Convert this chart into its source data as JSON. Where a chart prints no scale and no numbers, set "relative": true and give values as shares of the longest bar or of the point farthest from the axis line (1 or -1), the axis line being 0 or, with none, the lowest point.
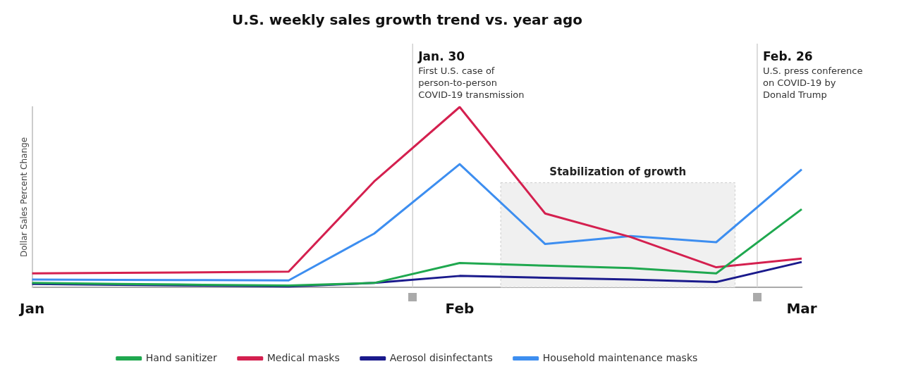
{
  "chart_data": {
    "type": "line",
    "title": "U.S. weekly sales growth trend vs. year ago",
    "ylabel": "Dollar Sales Percent Change",
    "relative": true,
    "categories": [
      "Jan",
      null,
      null,
      null,
      null,
      "Feb",
      null,
      null,
      null,
      "Mar"
    ],
    "series": [
      {
        "name": "Hand sanitizer",
        "color": "#1fa84f",
        "values": [
          0.024,
          0.019,
          0.014,
          0.01,
          0.024,
          0.135,
          0.12,
          0.106,
          0.077,
          0.433
        ]
      },
      {
        "name": "Medical masks",
        "color": "#d4204f",
        "values": [
          0.077,
          0.08,
          0.083,
          0.087,
          0.587,
          1,
          0.409,
          0.279,
          0.111,
          0.159
        ]
      },
      {
        "name": "Aerosol disinfectants",
        "color": "#1a1a8c",
        "values": [
          0.019,
          0.014,
          0.01,
          0.005,
          0.024,
          0.063,
          0.053,
          0.043,
          0.029,
          0.14
        ]
      },
      {
        "name": "Household maintenance masks",
        "color": "#3d8ef0",
        "values": [
          0.043,
          0.041,
          0.04,
          0.038,
          0.298,
          0.683,
          0.24,
          0.284,
          0.25,
          0.654
        ]
      }
    ],
    "annotations": [
      "Jan. 30",
      "First U.S. case of\nperson-to-person\nCOVID-19 transmission",
      "Feb. 26",
      "U.S. press conference\non COVID-19 by\nDonald Trump",
      "Stabilization of growth"
    ],
    "grid": false,
    "legend": "bottom",
    "marker": "none",
    "line_style": "solid"
  }
}
